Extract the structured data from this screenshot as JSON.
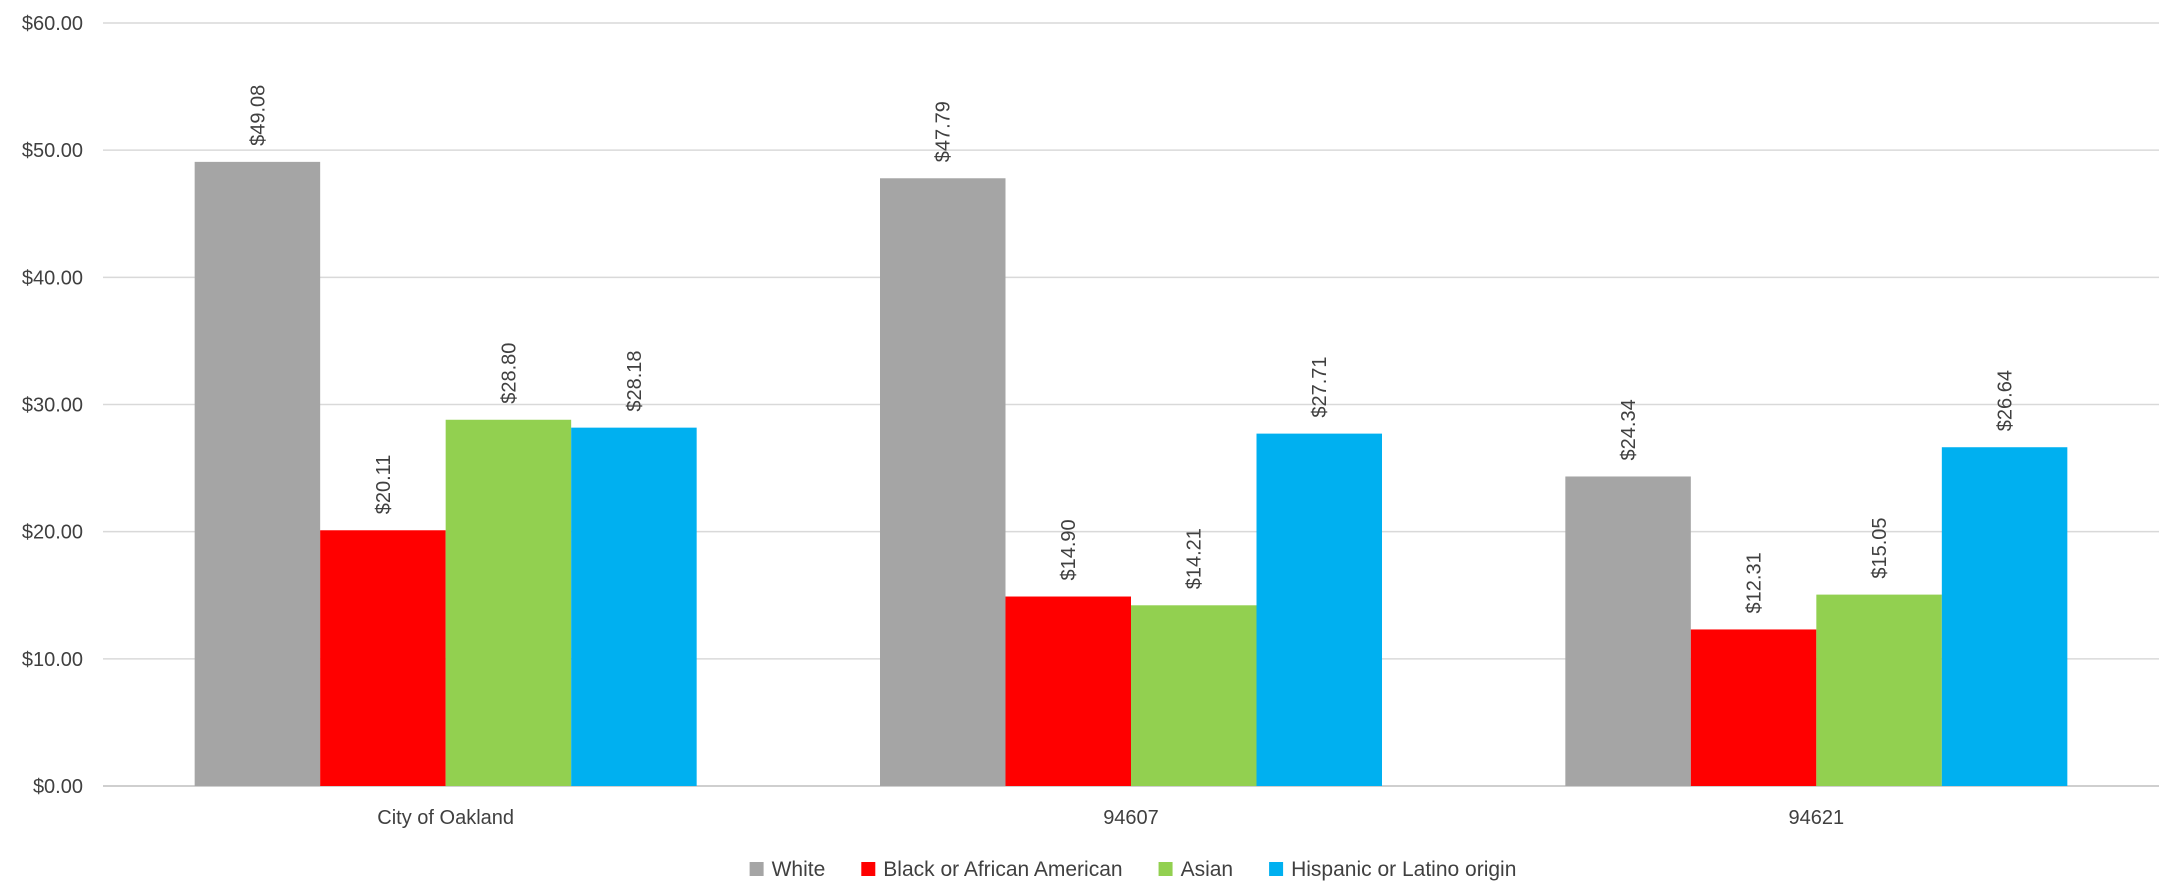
{
  "chart_data": {
    "type": "bar",
    "title": "",
    "xlabel": "",
    "ylabel": "",
    "categories": [
      "City of Oakland",
      "94607",
      "94621"
    ],
    "series": [
      {
        "name": "White",
        "color": "#A5A5A5",
        "values": [
          49.08,
          47.79,
          24.34
        ],
        "labels": [
          "$49.08",
          "$47.79",
          "$24.34"
        ]
      },
      {
        "name": "Black or African American",
        "color": "#FF0000",
        "values": [
          20.11,
          14.9,
          12.31
        ],
        "labels": [
          "$20.11",
          "$14.90",
          "$12.31"
        ]
      },
      {
        "name": "Asian",
        "color": "#92D050",
        "values": [
          28.8,
          14.21,
          15.05
        ],
        "labels": [
          "$28.80",
          "$14.21",
          "$15.05"
        ]
      },
      {
        "name": "Hispanic or Latino origin",
        "color": "#00B0F0",
        "values": [
          28.18,
          27.71,
          26.64
        ],
        "labels": [
          "$28.18",
          "$27.71",
          "$26.64"
        ]
      }
    ],
    "ylim": [
      0,
      60
    ],
    "yticks": [
      0,
      10,
      20,
      30,
      40,
      50,
      60
    ],
    "ytick_labels": [
      "$0.00",
      "$10.00",
      "$20.00",
      "$30.00",
      "$40.00",
      "$50.00",
      "$60.00"
    ],
    "grid": true,
    "legend_position": "bottom",
    "data_labels_rotated": true
  }
}
